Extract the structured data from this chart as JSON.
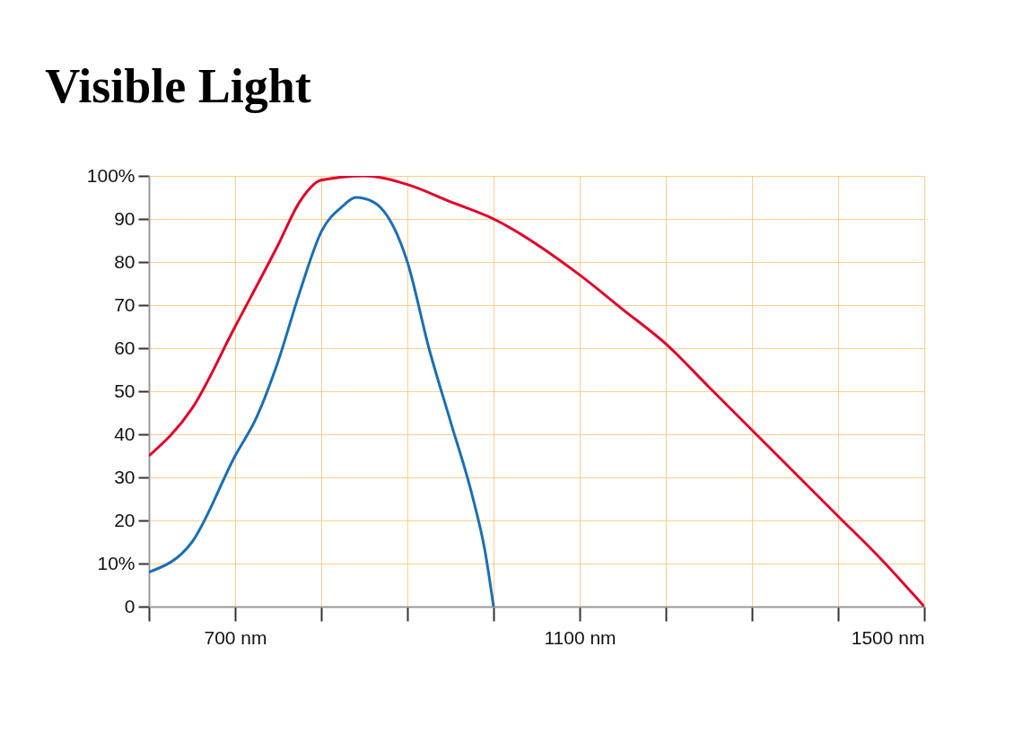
{
  "chart_data": {
    "type": "line",
    "title": "Visible Light",
    "series": [
      {
        "color": "#e0002a",
        "x": [
          600,
          650,
          700,
          750,
          775,
          800,
          850,
          900,
          950,
          1000,
          1100,
          1150,
          1200,
          1250,
          1300,
          1350,
          1400,
          1450,
          1500
        ],
        "values": [
          35,
          46,
          65,
          84,
          94,
          99,
          100,
          98,
          94,
          90,
          77,
          69,
          61,
          51,
          41,
          31,
          21,
          11,
          0
        ]
      },
      {
        "color": "#1a6fb5",
        "x": [
          600,
          650,
          700,
          725,
          750,
          775,
          800,
          825,
          840,
          860,
          900,
          925,
          950,
          975,
          990,
          1000
        ],
        "values": [
          8,
          15,
          35,
          44,
          57,
          73,
          87,
          93,
          95,
          94,
          80,
          60,
          43,
          26,
          13,
          0
        ]
      }
    ],
    "xlim": [
      600,
      1500
    ],
    "xticks": [
      {
        "value": 600,
        "label": null
      },
      {
        "value": 700,
        "label": "700 nm"
      },
      {
        "value": 800,
        "label": null
      },
      {
        "value": 900,
        "label": null
      },
      {
        "value": 1000,
        "label": null
      },
      {
        "value": 1100,
        "label": "1100 nm"
      },
      {
        "value": 1200,
        "label": null
      },
      {
        "value": 1300,
        "label": null
      },
      {
        "value": 1400,
        "label": null
      },
      {
        "value": 1500,
        "label": "1500 nm"
      }
    ],
    "ylim": [
      0,
      100
    ],
    "yticks": [
      0,
      {
        "value": 10,
        "label": "10%"
      },
      20,
      30,
      40,
      50,
      60,
      70,
      80,
      90,
      {
        "value": 100,
        "label": "100%"
      }
    ],
    "grid": true,
    "legend": false,
    "marker": "none",
    "line_style": "solid"
  }
}
